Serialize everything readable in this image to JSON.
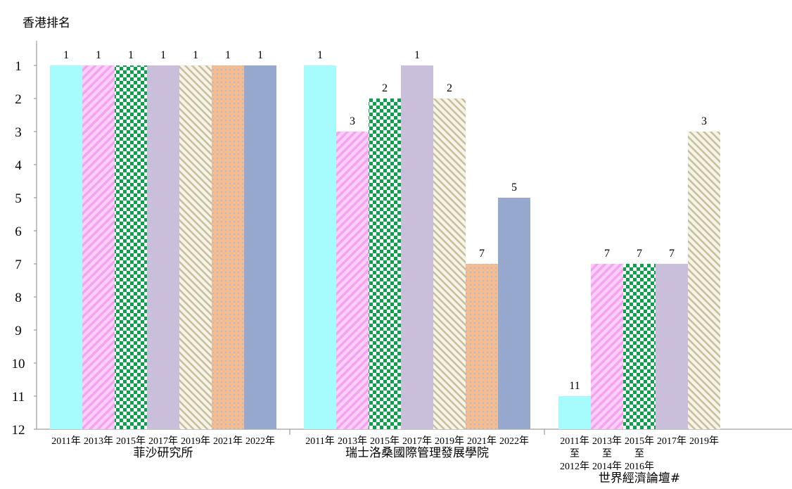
{
  "chart_data": {
    "type": "bar",
    "ylabel": "香港排名",
    "yaxis": {
      "min": 1,
      "max": 12,
      "inverted": true,
      "ticks": [
        1,
        2,
        3,
        4,
        5,
        6,
        7,
        8,
        9,
        10,
        11,
        12
      ]
    },
    "baseline": 12,
    "groups": [
      {
        "name": "菲沙研究所",
        "categories": [
          "2011年",
          "2013年",
          "2015年",
          "2017年",
          "2019年",
          "2021年",
          "2022年"
        ],
        "values": [
          1,
          1,
          1,
          1,
          1,
          1,
          1
        ]
      },
      {
        "name": "瑞士洛桑國際管理發展學院",
        "categories": [
          "2011年",
          "2013年",
          "2015年",
          "2017年",
          "2019年",
          "2021年",
          "2022年"
        ],
        "values": [
          1,
          3,
          2,
          1,
          2,
          7,
          5
        ]
      },
      {
        "name": "世界經濟論壇#",
        "categories": [
          "2011年\n至\n2012年",
          "2013年\n至\n2014年",
          "2015年\n至\n2016年",
          "2017年",
          "2019年"
        ],
        "values": [
          11,
          7,
          7,
          7,
          3
        ]
      }
    ],
    "styles": [
      {
        "key": "2011",
        "fill": "#a6fbfc",
        "pattern": "solid"
      },
      {
        "key": "2013",
        "fill": "#fbd0f8",
        "pattern": "diagonal-stripes",
        "accent": "#f4a3ee"
      },
      {
        "key": "2015",
        "fill": "#0aa14b",
        "pattern": "checker",
        "accent": "#ffffff"
      },
      {
        "key": "2017",
        "fill": "#c9bfdb",
        "pattern": "solid"
      },
      {
        "key": "2019",
        "fill": "#f6f3e8",
        "pattern": "back-diagonal-stripes",
        "accent": "#c7bf9a"
      },
      {
        "key": "2021",
        "fill": "#f3bc93",
        "pattern": "dots",
        "accent": "#a7b9cf"
      },
      {
        "key": "2022",
        "fill": "#97a8ce",
        "pattern": "solid"
      }
    ],
    "grid": false,
    "legend": "none"
  }
}
